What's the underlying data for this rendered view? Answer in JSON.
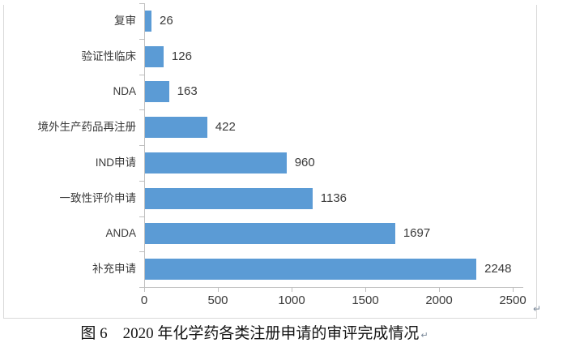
{
  "chart_data": {
    "type": "bar",
    "orientation": "horizontal",
    "title": "",
    "categories": [
      "复审",
      "验证性临床",
      "NDA",
      "境外生产药品再注册",
      "IND申请",
      "一致性评价申请",
      "ANDA",
      "补充申请"
    ],
    "values": [
      26,
      126,
      163,
      422,
      960,
      1136,
      1697,
      2248
    ],
    "value_labels": [
      "26",
      "126",
      "163",
      "422",
      "960",
      "1136",
      "1697",
      "2248"
    ],
    "xlabel": "",
    "ylabel": "",
    "xlim": [
      0,
      2500
    ],
    "x_ticks": [
      0,
      500,
      1000,
      1500,
      2000,
      2500
    ],
    "x_tick_labels": [
      "0",
      "500",
      "1000",
      "1500",
      "2000",
      "2500"
    ],
    "grid": false,
    "legend": null,
    "bar_color": "#5b9bd5",
    "axis_color": "#bfbfbf"
  },
  "caption": {
    "text": "图 6　2020 年化学药各类注册申请的审评完成情况",
    "return_mark": "↵"
  },
  "frame": {
    "return_mark": "↵"
  }
}
